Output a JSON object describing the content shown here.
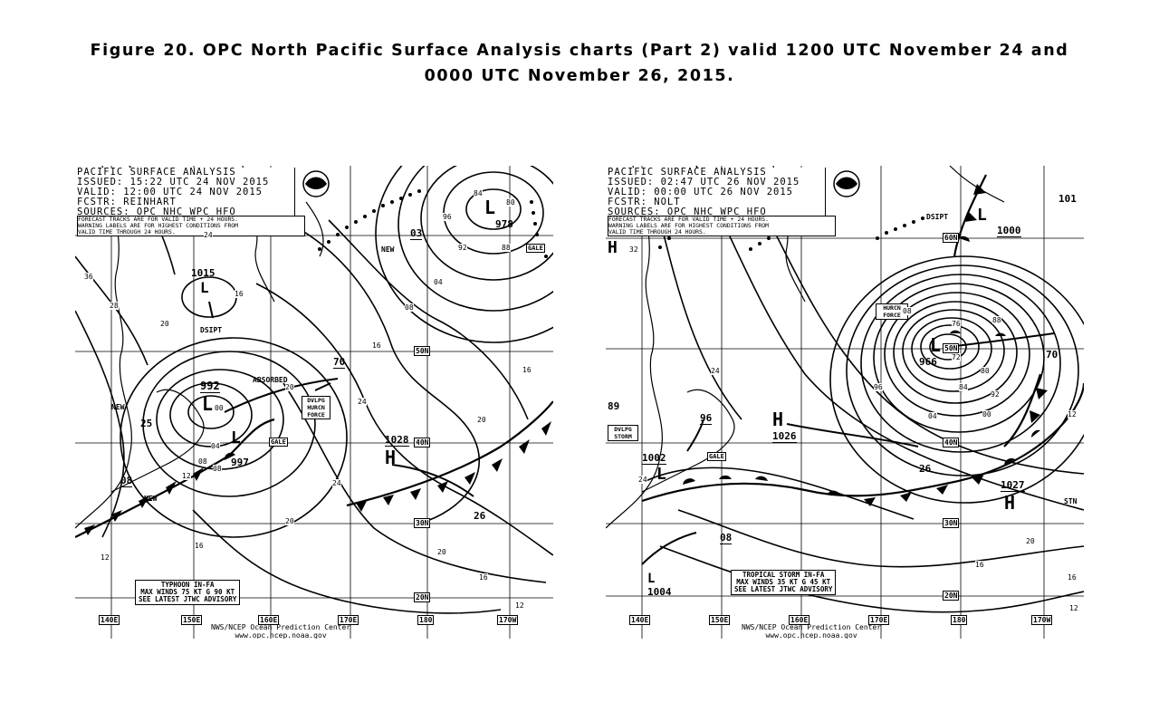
{
  "caption": {
    "line1": "Figure 20.  OPC North Pacific Surface Analysis charts (Part 2) valid  1200 UTC November 24 and",
    "line2": "0000 UTC November 26, 2015."
  },
  "charts": [
    {
      "header": {
        "title": "PACIFIC SURFACE ANALYSIS",
        "issued": "ISSUED:  15:22 UTC 24 NOV 2015",
        "valid": "VALID:   12:00 UTC 24 NOV 2015",
        "fcstr": "FCSTR:   REINHART",
        "sources": "SOURCES:  OPC NHC WPC HFO"
      },
      "note": [
        "FORECAST TRACKS ARE FOR VALID TIME + 24 HOURS.",
        "WARNING LABELS ARE FOR HIGHEST CONDITIONS FROM",
        "VALID TIME THROUGH 24 HOURS."
      ],
      "lon_labels": [
        "140E",
        "150E",
        "160E",
        "170E",
        "180",
        "170W"
      ],
      "lat_labels": [
        "50N",
        "40N",
        "30N",
        "20N"
      ],
      "centers": [
        {
          "type": "L",
          "pressure": "992"
        },
        {
          "type": "L",
          "pressure": "997"
        },
        {
          "type": "L",
          "pressure": "1015"
        },
        {
          "type": "L",
          "pressure": "978"
        },
        {
          "type": "H",
          "pressure": "1028"
        }
      ],
      "warnings": [
        "GALE",
        "DVLPG HURCN FORCE",
        "GALE"
      ],
      "labels": [
        "DSIPT",
        "ABSORBED",
        "NEW",
        "NEW",
        "NEW",
        "03",
        "70",
        "26",
        "25",
        "08"
      ],
      "isobar_labels": [
        "36",
        "28",
        "24",
        "20",
        "16",
        "12",
        "08",
        "04",
        "00",
        "96",
        "92",
        "88",
        "84",
        "80",
        "16",
        "24",
        "20",
        "16",
        "20",
        "24",
        "20",
        "16",
        "12",
        "08",
        "04",
        "08",
        "12",
        "16",
        "20"
      ],
      "advisory": [
        "TYPHOON IN-FA",
        "MAX WINDS 75 KT G 90 KT",
        "SEE LATEST JTWC ADVISORY"
      ],
      "footer": {
        "line1": "NWS/NCEP  Ocean Prediction Center",
        "line2": "www.opc.ncep.noaa.gov"
      }
    },
    {
      "header": {
        "title": "PACIFIC SURFACE ANALYSIS",
        "issued": "ISSUED:  02:47 UTC 26 NOV 2015",
        "valid": "VALID:   00:00 UTC 26 NOV 2015",
        "fcstr": "FCSTR:   NOLT",
        "sources": "SOURCES:  OPC NHC WPC HFO"
      },
      "note": [
        "FORECAST TRACKS ARE FOR VALID TIME + 24 HOURS.",
        "WARNING LABELS ARE FOR HIGHEST CONDITIONS FROM",
        "VALID TIME THROUGH 24 HOURS."
      ],
      "lon_labels": [
        "140E",
        "150E",
        "160E",
        "170E",
        "180",
        "170W"
      ],
      "lat_labels": [
        "60N",
        "50N",
        "40N",
        "30N",
        "20N"
      ],
      "centers": [
        {
          "type": "L",
          "pressure": "966"
        },
        {
          "type": "L",
          "pressure": "1000"
        },
        {
          "type": "L",
          "pressure": "1002"
        },
        {
          "type": "L",
          "pressure": "1004"
        },
        {
          "type": "H",
          "pressure": "1026"
        },
        {
          "type": "H",
          "pressure": "1027"
        },
        {
          "type": "H",
          "pressure": "89"
        }
      ],
      "warnings": [
        "HURCN FORCE",
        "DVLPG STORM",
        "GALE"
      ],
      "labels": [
        "DSIPT",
        "70",
        "26",
        "96",
        "08",
        "101",
        "STN"
      ],
      "isobar_labels": [
        "32",
        "24",
        "76",
        "72",
        "80",
        "84",
        "88",
        "92",
        "96",
        "00",
        "04",
        "08",
        "12",
        "16",
        "20",
        "24",
        "16",
        "12"
      ],
      "advisory": [
        "TROPICAL STORM IN-FA",
        "MAX WINDS 35 KT G 45 KT",
        "SEE LATEST JTWC ADVISORY"
      ],
      "footer": {
        "line1": "NWS/NCEP  Ocean Prediction Center",
        "line2": "www.opc.ncep.noaa.gov"
      }
    }
  ]
}
